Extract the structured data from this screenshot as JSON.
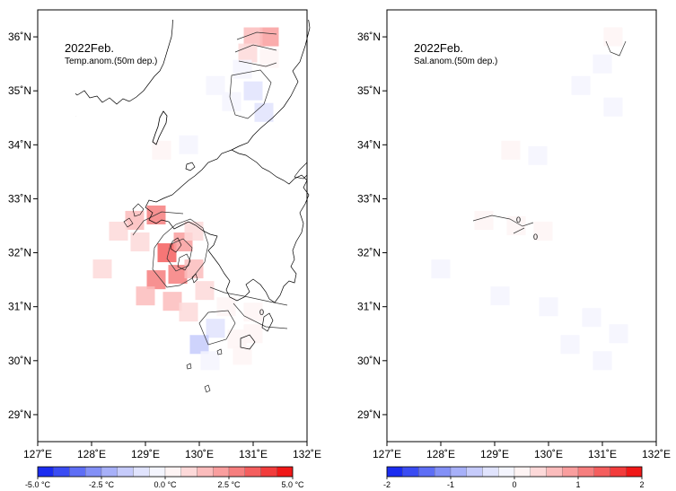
{
  "panels": [
    {
      "id": "temp",
      "title": "2022Feb.",
      "subtitle": "Temp.anom.(50m dep.)",
      "colorbar": {
        "labels": [
          "-5.0 °C",
          "-2.5 °C",
          "0.0 °C",
          "2.5 °C",
          "5.0 °C"
        ],
        "colors": [
          "#1a2cf0",
          "#3a4cf3",
          "#5e6ef5",
          "#8390f7",
          "#a7b0f9",
          "#c6cbfb",
          "#e0e3fd",
          "#f4f5fe",
          "#fef4f4",
          "#fdd9d9",
          "#fbbcbc",
          "#f99e9e",
          "#f67e7e",
          "#f45e5e",
          "#f23c3c",
          "#f01818"
        ]
      },
      "contour_labels": [
        "0"
      ]
    },
    {
      "id": "sal",
      "title": "2022Feb.",
      "subtitle": "Sal.anom.(50m dep.)",
      "colorbar": {
        "labels": [
          "-2",
          "-1",
          "0",
          "1",
          "2"
        ],
        "colors": [
          "#1a2cf0",
          "#3a4cf3",
          "#5e6ef5",
          "#8390f7",
          "#a7b0f9",
          "#c6cbfb",
          "#e0e3fd",
          "#f4f5fe",
          "#fef4f4",
          "#fdd9d9",
          "#fbbcbc",
          "#f99e9e",
          "#f67e7e",
          "#f45e5e",
          "#f23c3c",
          "#f01818"
        ]
      },
      "contour_labels": [
        "0",
        "0"
      ]
    }
  ],
  "axes": {
    "x_ticks": [
      "127˚E",
      "128˚E",
      "129˚E",
      "130˚E",
      "131˚E",
      "132˚E"
    ],
    "y_ticks": [
      "36˚N",
      "35˚N",
      "34˚N",
      "33˚N",
      "32˚N",
      "31˚N",
      "30˚N",
      "29˚N"
    ],
    "lon_range": [
      127,
      132
    ],
    "lat_range": [
      28.5,
      36.5
    ]
  },
  "anomaly_cells": {
    "temp": [
      {
        "lon": 131.3,
        "lat": 36.0,
        "v": 2.2
      },
      {
        "lon": 131.0,
        "lat": 36.0,
        "v": 1.3
      },
      {
        "lon": 130.9,
        "lat": 35.7,
        "v": 0.8
      },
      {
        "lon": 131.3,
        "lat": 35.6,
        "v": 0.6
      },
      {
        "lon": 130.8,
        "lat": 35.4,
        "v": -0.3
      },
      {
        "lon": 130.3,
        "lat": 35.1,
        "v": -0.4
      },
      {
        "lon": 130.6,
        "lat": 34.8,
        "v": -0.5
      },
      {
        "lon": 131.0,
        "lat": 35.0,
        "v": -1.2
      },
      {
        "lon": 131.2,
        "lat": 34.6,
        "v": -0.9
      },
      {
        "lon": 129.3,
        "lat": 33.9,
        "v": 0.5
      },
      {
        "lon": 129.8,
        "lat": 34.0,
        "v": -0.3
      },
      {
        "lon": 128.8,
        "lat": 32.6,
        "v": 1.8
      },
      {
        "lon": 129.2,
        "lat": 32.7,
        "v": 2.8
      },
      {
        "lon": 128.5,
        "lat": 32.4,
        "v": 1.2
      },
      {
        "lon": 128.9,
        "lat": 32.2,
        "v": 1.0
      },
      {
        "lon": 129.4,
        "lat": 32.0,
        "v": 3.5
      },
      {
        "lon": 129.7,
        "lat": 32.2,
        "v": 2.0
      },
      {
        "lon": 129.9,
        "lat": 32.4,
        "v": 1.2
      },
      {
        "lon": 128.2,
        "lat": 31.7,
        "v": 1.2
      },
      {
        "lon": 129.2,
        "lat": 31.5,
        "v": 2.5
      },
      {
        "lon": 129.6,
        "lat": 31.6,
        "v": 2.8
      },
      {
        "lon": 129.9,
        "lat": 31.7,
        "v": 1.8
      },
      {
        "lon": 130.1,
        "lat": 31.3,
        "v": 1.0
      },
      {
        "lon": 129.0,
        "lat": 31.2,
        "v": 1.5
      },
      {
        "lon": 129.5,
        "lat": 31.1,
        "v": 1.3
      },
      {
        "lon": 129.8,
        "lat": 30.9,
        "v": 0.8
      },
      {
        "lon": 130.5,
        "lat": 31.0,
        "v": 0.4
      },
      {
        "lon": 131.0,
        "lat": 30.9,
        "v": 0.3
      },
      {
        "lon": 130.3,
        "lat": 30.6,
        "v": -0.8
      },
      {
        "lon": 130.0,
        "lat": 30.3,
        "v": -1.4
      },
      {
        "lon": 130.7,
        "lat": 30.4,
        "v": 0.4
      },
      {
        "lon": 131.0,
        "lat": 30.5,
        "v": 0.5
      },
      {
        "lon": 130.2,
        "lat": 30.0,
        "v": -0.6
      },
      {
        "lon": 130.8,
        "lat": 30.1,
        "v": 0.2
      }
    ],
    "sal": [
      {
        "lon": 131.2,
        "lat": 36.0,
        "v": 0.2
      },
      {
        "lon": 131.0,
        "lat": 35.5,
        "v": -0.15
      },
      {
        "lon": 130.6,
        "lat": 35.1,
        "v": -0.1
      },
      {
        "lon": 131.2,
        "lat": 34.7,
        "v": -0.15
      },
      {
        "lon": 129.3,
        "lat": 33.9,
        "v": 0.2
      },
      {
        "lon": 129.8,
        "lat": 33.8,
        "v": -0.1
      },
      {
        "lon": 128.8,
        "lat": 32.6,
        "v": 0.15
      },
      {
        "lon": 129.4,
        "lat": 32.5,
        "v": 0.2
      },
      {
        "lon": 129.9,
        "lat": 32.4,
        "v": 0.1
      },
      {
        "lon": 128.0,
        "lat": 31.7,
        "v": -0.1
      },
      {
        "lon": 129.1,
        "lat": 31.2,
        "v": -0.1
      },
      {
        "lon": 130.0,
        "lat": 31.0,
        "v": -0.1
      },
      {
        "lon": 130.8,
        "lat": 30.8,
        "v": -0.15
      },
      {
        "lon": 131.3,
        "lat": 30.5,
        "v": -0.15
      },
      {
        "lon": 130.4,
        "lat": 30.3,
        "v": -0.1
      },
      {
        "lon": 131.0,
        "lat": 30.0,
        "v": -0.1
      }
    ]
  }
}
